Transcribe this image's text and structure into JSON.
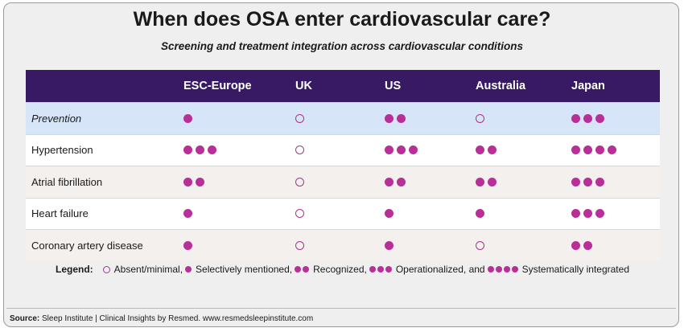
{
  "title": "When does OSA enter cardiovascular care?",
  "subtitle": "Screening and treatment integration across cardiovascular conditions",
  "chart_data": {
    "type": "table",
    "columns": [
      "ESC-Europe",
      "UK",
      "US",
      "Australia",
      "Japan"
    ],
    "rows": [
      {
        "label": "Prevention",
        "italic": true,
        "values": [
          1,
          0,
          2,
          0,
          3
        ]
      },
      {
        "label": "Hypertension",
        "values": [
          3,
          0,
          3,
          2,
          4
        ]
      },
      {
        "label": "Atrial fibrillation",
        "values": [
          2,
          0,
          2,
          2,
          3
        ]
      },
      {
        "label": "Heart failure",
        "values": [
          1,
          0,
          1,
          1,
          3
        ]
      },
      {
        "label": "Coronary artery disease",
        "values": [
          1,
          0,
          1,
          0,
          2
        ]
      }
    ],
    "scale": {
      "0": "Absent/minimal,",
      "1": "Selectively mentioned,",
      "2": "Recognized,",
      "3": "Operationalized, and",
      "4": "Systematically integrated"
    }
  },
  "legend": {
    "title": "Legend:",
    "items": [
      {
        "level": 0,
        "text": "Absent/minimal,"
      },
      {
        "level": 1,
        "text": "Selectively mentioned,"
      },
      {
        "level": 2,
        "text": "Recognized,"
      },
      {
        "level": 3,
        "text": "Operationalized, and"
      },
      {
        "level": 4,
        "text": "Systematically integrated"
      }
    ]
  },
  "colors": {
    "header_bg": "#371a63",
    "dot": "#b82f97",
    "highlight_row": "#d6e6f8"
  },
  "source": {
    "label": "Source:",
    "text": "Sleep Institute | Clinical Insights by Resmed. www.resmedsleepinstitute.com"
  }
}
